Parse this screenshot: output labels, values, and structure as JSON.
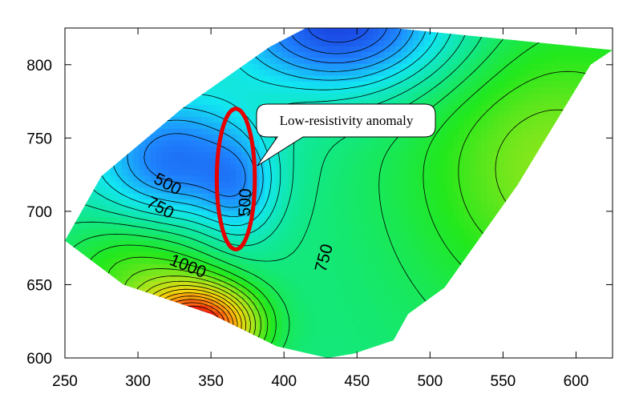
{
  "chart_data": {
    "type": "heatmap",
    "subtype": "filled-contour",
    "title": "",
    "xlabel": "",
    "ylabel": "",
    "xlim": [
      250,
      625
    ],
    "ylim": [
      600,
      825
    ],
    "x_ticks": [
      250,
      300,
      350,
      400,
      450,
      500,
      550,
      600
    ],
    "y_ticks": [
      600,
      650,
      700,
      750,
      800
    ],
    "grid": false,
    "colormap": [
      "#1a3fe0",
      "#1f86ff",
      "#12e6f2",
      "#10e890",
      "#22e81c",
      "#a6e61c",
      "#f2d40c",
      "#ff7e10",
      "#e80c0c"
    ],
    "survey_polygon": [
      [
        250,
        680
      ],
      [
        275,
        724
      ],
      [
        330,
        770
      ],
      [
        390,
        812
      ],
      [
        415,
        825
      ],
      [
        475,
        825
      ],
      [
        625,
        810
      ],
      [
        610,
        800
      ],
      [
        560,
        718
      ],
      [
        510,
        648
      ],
      [
        485,
        630
      ],
      [
        475,
        612
      ],
      [
        448,
        603
      ],
      [
        430,
        600
      ],
      [
        395,
        608
      ],
      [
        350,
        630
      ],
      [
        290,
        650
      ],
      [
        250,
        680
      ]
    ],
    "resistivity_field": {
      "base": 650,
      "slope_x": 0.2,
      "sources": [
        {
          "x": 440,
          "y": 828,
          "amp": -450,
          "sx": 75,
          "sy": 45
        },
        {
          "x": 325,
          "y": 735,
          "amp": -330,
          "sx": 55,
          "sy": 45
        },
        {
          "x": 370,
          "y": 715,
          "amp": -170,
          "sx": 25,
          "sy": 35
        },
        {
          "x": 340,
          "y": 622,
          "amp": 760,
          "sx": 38,
          "sy": 26
        },
        {
          "x": 300,
          "y": 660,
          "amp": 200,
          "sx": 55,
          "sy": 40
        },
        {
          "x": 580,
          "y": 730,
          "amp": 200,
          "sx": 90,
          "sy": 90
        }
      ]
    },
    "contour_interval": 50,
    "contour_labels": [
      {
        "text": "500",
        "x": 320,
        "y": 718,
        "angle": 28
      },
      {
        "text": "750",
        "x": 315,
        "y": 702,
        "angle": 28
      },
      {
        "text": "1000",
        "x": 334,
        "y": 662,
        "angle": 22
      },
      {
        "text": "500",
        "x": 374,
        "y": 706,
        "angle": -88
      },
      {
        "text": "750",
        "x": 428,
        "y": 668,
        "angle": -75
      }
    ],
    "annotations": [
      {
        "type": "ellipse",
        "cx": 367,
        "cy": 722,
        "rx": 13,
        "ry": 48,
        "color": "#e60000"
      },
      {
        "type": "callout",
        "text": "Low-resistivity anomaly",
        "x": 437,
        "y": 752
      }
    ]
  }
}
